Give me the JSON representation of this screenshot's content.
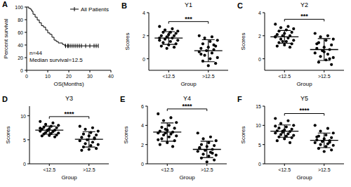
{
  "chart_data": [
    {
      "type": "line",
      "panel": "A",
      "x_label": "OS(Months)",
      "y_label": "Percent survival",
      "x": [
        0,
        1,
        2,
        2.5,
        3,
        4,
        5,
        6,
        7,
        8,
        9,
        10,
        11,
        12,
        13,
        14,
        15,
        17,
        18,
        34
      ],
      "series": [
        {
          "name": "All Patients",
          "color": "#000000",
          "values": [
            100,
            97.7,
            95.5,
            93.2,
            88.6,
            84.1,
            79.5,
            75,
            70.5,
            68.2,
            63.6,
            59.1,
            56.8,
            52.3,
            47.7,
            45.5,
            43.2,
            40.9,
            38.6,
            38.6
          ]
        }
      ],
      "censored": {
        "x": [
          18.5,
          19.5,
          20,
          21,
          22,
          23,
          24,
          25,
          26,
          28,
          30,
          32,
          33,
          34
        ],
        "values": [
          38.6,
          38.6,
          38.6,
          38.6,
          38.6,
          38.6,
          38.6,
          38.6,
          38.6,
          38.6,
          38.6,
          38.6,
          38.6,
          38.6
        ]
      },
      "annotations": [
        "n=44",
        "Median survival=12.5"
      ],
      "xlim": [
        0,
        40
      ],
      "xticks": [
        0,
        10,
        20,
        30,
        40
      ],
      "ylim": [
        0,
        100
      ],
      "yticks": [
        0,
        20,
        40,
        60,
        80,
        100
      ],
      "legend": "top-right"
    },
    {
      "type": "strip",
      "panel": "B",
      "title": "Y1",
      "x_label": "Group",
      "y_label": "Scores",
      "color": "#000000",
      "categories": [
        "<12.5",
        ">12.5"
      ],
      "points": [
        [
          2.8,
          2.6,
          2.5,
          2.4,
          2.3,
          2.3,
          2.2,
          2.1,
          2.0,
          2.0,
          1.9,
          1.8,
          1.8,
          1.7,
          1.6,
          1.5,
          1.4,
          1.3,
          1.2,
          1.1,
          1.0,
          0.9,
          1.6
        ],
        [
          2.0,
          1.9,
          1.8,
          1.6,
          1.5,
          1.3,
          1.1,
          1.0,
          0.9,
          0.8,
          0.7,
          0.6,
          0.5,
          0.3,
          0.1,
          0,
          -0.2,
          -0.4,
          -0.6,
          0.4,
          1.2
        ]
      ],
      "mean": [
        1.8,
        0.7
      ],
      "sd": [
        0.55,
        0.95
      ],
      "annotations": [
        "***"
      ],
      "ylim": [
        -1,
        4
      ],
      "yticks": [
        0,
        2,
        4
      ]
    },
    {
      "type": "strip",
      "panel": "C",
      "title": "Y2",
      "x_label": "Group",
      "y_label": "Scores",
      "color": "#000000",
      "categories": [
        "<12.5",
        ">12.5"
      ],
      "points": [
        [
          3.0,
          2.8,
          2.7,
          2.6,
          2.5,
          2.4,
          2.3,
          2.2,
          2.1,
          2.0,
          2.0,
          1.9,
          1.8,
          1.7,
          1.6,
          1.5,
          1.4,
          1.3,
          1.2,
          1.1,
          1.0,
          1.5,
          1.9
        ],
        [
          2.2,
          2.0,
          1.9,
          1.7,
          1.6,
          1.4,
          1.2,
          1.0,
          0.9,
          0.8,
          0.7,
          0.5,
          0.4,
          0.2,
          0.1,
          -0.1,
          -0.3,
          -0.5,
          0.6,
          1.3,
          0.0
        ]
      ],
      "mean": [
        1.9,
        0.8
      ],
      "sd": [
        0.55,
        0.95
      ],
      "annotations": [
        "***"
      ],
      "ylim": [
        -1,
        4
      ],
      "yticks": [
        0,
        2,
        4
      ]
    },
    {
      "type": "strip",
      "panel": "D",
      "title": "Y3",
      "x_label": "Group",
      "y_label": "Scores",
      "color": "#000000",
      "categories": [
        "<12.5",
        ">12.5"
      ],
      "points": [
        [
          8.8,
          8.5,
          8.2,
          8.0,
          7.8,
          7.6,
          7.5,
          7.3,
          7.2,
          7.0,
          7.0,
          6.8,
          6.7,
          6.5,
          6.4,
          6.3,
          6.2,
          6.0,
          5.9,
          5.8,
          5.6,
          6.9,
          7.4
        ],
        [
          7.8,
          7.5,
          7.2,
          6.8,
          6.5,
          6.2,
          6.0,
          5.8,
          5.5,
          5.2,
          5.0,
          4.8,
          4.5,
          4.2,
          4.0,
          3.8,
          3.5,
          3.2,
          3.0,
          2.8,
          5.4
        ]
      ],
      "mean": [
        7.0,
        5.1
      ],
      "sd": [
        0.85,
        1.6
      ],
      "annotations": [
        "****"
      ],
      "ylim": [
        0,
        12
      ],
      "yticks": [
        0,
        5,
        10
      ]
    },
    {
      "type": "strip",
      "panel": "E",
      "title": "Y4",
      "x_label": "Group",
      "y_label": "Scores",
      "color": "#000000",
      "categories": [
        "<12.5",
        ">12.5"
      ],
      "points": [
        [
          5.2,
          4.8,
          4.5,
          4.3,
          4.0,
          3.8,
          3.7,
          3.5,
          3.4,
          3.3,
          3.2,
          3.2,
          3.1,
          3.0,
          2.9,
          2.8,
          2.6,
          2.4,
          2.2,
          2.0,
          1.8,
          3.6,
          2.5
        ],
        [
          3.2,
          2.8,
          2.6,
          2.4,
          2.2,
          2.0,
          1.9,
          1.8,
          1.6,
          1.5,
          1.4,
          1.3,
          1.2,
          1.0,
          0.9,
          0.8,
          0.6,
          0.4,
          0.2,
          1.7,
          1.1
        ]
      ],
      "mean": [
        3.3,
        1.5
      ],
      "sd": [
        0.95,
        0.85
      ],
      "annotations": [
        "****"
      ],
      "ylim": [
        0,
        6
      ],
      "yticks": [
        0,
        2,
        4,
        6
      ]
    },
    {
      "type": "strip",
      "panel": "F",
      "title": "Y5",
      "x_label": "Group",
      "y_label": "Scores",
      "color": "#000000",
      "categories": [
        "<12.5",
        ">12.5"
      ],
      "points": [
        [
          11.8,
          11.2,
          10.5,
          10.0,
          9.6,
          9.3,
          9.0,
          8.8,
          8.6,
          8.4,
          8.2,
          8.0,
          7.8,
          7.6,
          7.4,
          7.2,
          7.0,
          6.8,
          6.5,
          6.0,
          5.5,
          8.5,
          9.8
        ],
        [
          10.0,
          9.2,
          8.5,
          8.0,
          7.5,
          7.2,
          6.8,
          6.5,
          6.2,
          6.0,
          5.8,
          5.5,
          5.2,
          5.0,
          4.8,
          4.5,
          4.0,
          3.6,
          3.2,
          7.0,
          5.6
        ]
      ],
      "mean": [
        8.5,
        6.1
      ],
      "sd": [
        1.6,
        1.9
      ],
      "annotations": [
        "****"
      ],
      "ylim": [
        0,
        15
      ],
      "yticks": [
        0,
        5,
        10,
        15
      ]
    }
  ]
}
